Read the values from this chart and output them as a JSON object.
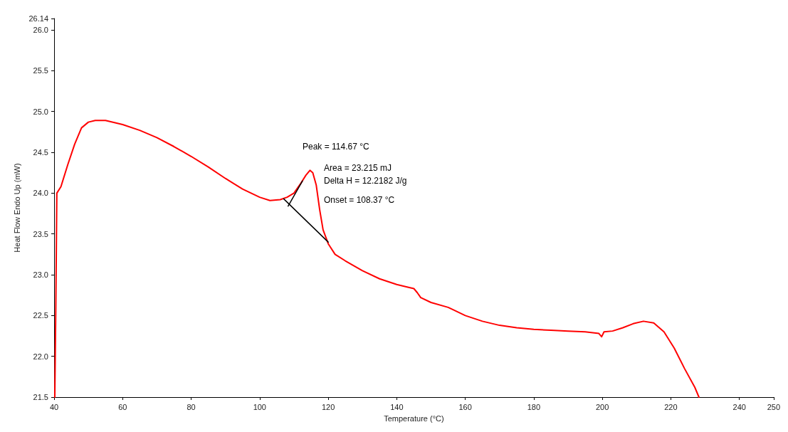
{
  "chart_data": {
    "type": "line",
    "xlabel": "Temperature (°C)",
    "ylabel": "Heat Flow Endo Up (mW)",
    "xlim": [
      40,
      250
    ],
    "xticks": [
      40,
      60,
      80,
      100,
      120,
      140,
      160,
      180,
      200,
      220,
      240,
      250
    ],
    "ylim": [
      21.5,
      26.14
    ],
    "yticks": [
      {
        "value": 21.5,
        "label": "21.5"
      },
      {
        "value": 22,
        "label": "22.0"
      },
      {
        "value": 22.5,
        "label": "22.5"
      },
      {
        "value": 23,
        "label": "23.0"
      },
      {
        "value": 23.5,
        "label": "23.5"
      },
      {
        "value": 24,
        "label": "24.0"
      },
      {
        "value": 24.5,
        "label": "24.5"
      },
      {
        "value": 25,
        "label": "25.0"
      },
      {
        "value": 25.5,
        "label": "25.5"
      },
      {
        "value": 26,
        "label": "26.0"
      },
      {
        "value": 26.14,
        "label": "26.14"
      }
    ],
    "grid": false,
    "marker": "none",
    "line_style": "solid",
    "series": [
      {
        "color": "#ff0000",
        "x": [
          40.2,
          40.5,
          40.8,
          42,
          44,
          46,
          48,
          50,
          52,
          55,
          60,
          65,
          70,
          75,
          80,
          85,
          90,
          95,
          100,
          103,
          106,
          108,
          110,
          112,
          113.5,
          114.67,
          115.5,
          116.5,
          117.5,
          118.5,
          120,
          122,
          125,
          130,
          135,
          140,
          143,
          145,
          146,
          147,
          150,
          155,
          156,
          160,
          165,
          170,
          175,
          180,
          185,
          190,
          195,
          199,
          199.8,
          200.5,
          203,
          206,
          209,
          212,
          215,
          218,
          221,
          224,
          227,
          228.2
        ],
        "values": [
          21.5,
          22.6,
          24.0,
          24.08,
          24.35,
          24.6,
          24.8,
          24.87,
          24.89,
          24.89,
          24.84,
          24.77,
          24.68,
          24.57,
          24.45,
          24.32,
          24.18,
          24.05,
          23.95,
          23.91,
          23.92,
          23.95,
          24.0,
          24.12,
          24.22,
          24.28,
          24.25,
          24.1,
          23.8,
          23.55,
          23.38,
          23.25,
          23.17,
          23.05,
          22.95,
          22.88,
          22.85,
          22.83,
          22.78,
          22.72,
          22.66,
          22.6,
          22.58,
          22.5,
          22.43,
          22.38,
          22.35,
          22.33,
          22.32,
          22.31,
          22.3,
          22.28,
          22.24,
          22.3,
          22.31,
          22.35,
          22.4,
          22.43,
          22.41,
          22.3,
          22.1,
          21.85,
          21.62,
          21.5
        ]
      },
      {
        "color": "#000000",
        "x": [
          107,
          120
        ],
        "values": [
          23.93,
          23.4
        ]
      },
      {
        "color": "#000000",
        "x": [
          108.3,
          112.5
        ],
        "values": [
          23.84,
          24.15
        ]
      }
    ],
    "annotations": [
      "Peak = 114.67 °C",
      "Area = 23.215 mJ",
      "Delta H = 12.2182 J/g",
      "Onset = 108.37 °C"
    ]
  }
}
